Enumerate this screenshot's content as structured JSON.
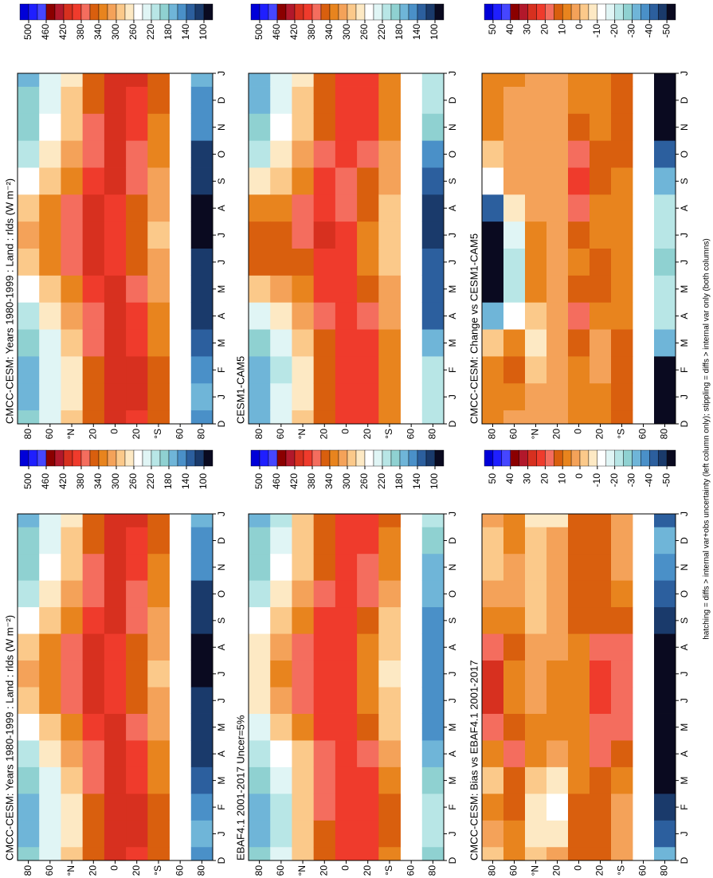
{
  "chart_data": [
    {
      "type": "heatmap",
      "title": "CMCC-CESM: Years 1980-1999 : Land : rlds (W m⁻²)",
      "categories": [
        "D",
        "J",
        "F",
        "M",
        "A",
        "M",
        "J",
        "J",
        "A",
        "S",
        "O",
        "N",
        "D",
        "J"
      ],
      "rows": [
        80,
        60,
        40,
        20,
        0,
        -20,
        -40,
        -60,
        -80
      ],
      "z": [
        [
          190,
          180,
          180,
          190,
          220,
          260,
          300,
          310,
          300,
          260,
          220,
          200,
          190,
          180
        ],
        [
          240,
          230,
          230,
          240,
          270,
          300,
          330,
          340,
          330,
          300,
          270,
          250,
          240,
          230
        ],
        [
          290,
          280,
          280,
          290,
          310,
          340,
          370,
          380,
          370,
          340,
          310,
          295,
          290,
          280
        ],
        [
          360,
          350,
          355,
          365,
          380,
          395,
          405,
          410,
          405,
          395,
          380,
          365,
          360,
          350
        ],
        [
          405,
          405,
          410,
          410,
          410,
          405,
          400,
          400,
          400,
          405,
          405,
          405,
          405,
          405
        ],
        [
          400,
          405,
          405,
          400,
          385,
          370,
          355,
          350,
          355,
          365,
          380,
          395,
          400,
          405
        ],
        [
          345,
          350,
          350,
          340,
          325,
          315,
          305,
          300,
          305,
          315,
          325,
          340,
          345,
          350
        ],
        [
          null,
          null,
          null,
          null,
          null,
          null,
          null,
          null,
          null,
          null,
          null,
          null,
          null,
          null
        ],
        [
          160,
          170,
          160,
          140,
          120,
          110,
          105,
          100,
          100,
          105,
          120,
          145,
          160,
          170
        ]
      ],
      "ylim": [
        -90,
        90
      ],
      "yticks": [
        80,
        60,
        {
          "value": 40,
          "label": "°N"
        },
        20,
        0,
        {
          "value": -20,
          "label": "20"
        },
        {
          "value": -40,
          "label": "°S"
        },
        {
          "value": -60,
          "label": "60"
        },
        {
          "value": -80,
          "label": "80"
        }
      ],
      "clim": [
        80,
        520
      ],
      "cticks": [
        500,
        460,
        420,
        380,
        340,
        300,
        260,
        220,
        180,
        140,
        100
      ]
    },
    {
      "type": "heatmap",
      "title": "CMCC-CESM: Years 1980-1999 : Land : rlds (W m⁻²)",
      "categories": [
        "D",
        "J",
        "F",
        "M",
        "A",
        "M",
        "J",
        "J",
        "A",
        "S",
        "O",
        "N",
        "D",
        "J"
      ],
      "rows": [
        80,
        60,
        40,
        20,
        0,
        -20,
        -40,
        -60,
        -80
      ],
      "z": [
        [
          190,
          180,
          180,
          190,
          220,
          260,
          300,
          310,
          300,
          260,
          220,
          200,
          190,
          180
        ],
        [
          240,
          230,
          230,
          240,
          270,
          300,
          330,
          340,
          330,
          300,
          270,
          250,
          240,
          230
        ],
        [
          290,
          280,
          280,
          290,
          310,
          340,
          370,
          380,
          370,
          340,
          310,
          295,
          290,
          280
        ],
        [
          360,
          350,
          355,
          365,
          380,
          395,
          405,
          410,
          405,
          395,
          380,
          365,
          360,
          350
        ],
        [
          405,
          405,
          410,
          410,
          410,
          405,
          400,
          400,
          400,
          405,
          405,
          405,
          405,
          405
        ],
        [
          400,
          405,
          405,
          400,
          385,
          370,
          355,
          350,
          355,
          365,
          380,
          395,
          400,
          405
        ],
        [
          345,
          350,
          350,
          340,
          325,
          315,
          305,
          300,
          305,
          315,
          325,
          340,
          345,
          350
        ],
        [
          null,
          null,
          null,
          null,
          null,
          null,
          null,
          null,
          null,
          null,
          null,
          null,
          null,
          null
        ],
        [
          160,
          170,
          160,
          140,
          120,
          110,
          105,
          100,
          100,
          105,
          120,
          145,
          160,
          170
        ]
      ],
      "ylim": [
        -90,
        90
      ],
      "yticks": [
        80,
        60,
        {
          "value": 40,
          "label": "°N"
        },
        20,
        0,
        {
          "value": -20,
          "label": "20"
        },
        {
          "value": -40,
          "label": "°S"
        },
        {
          "value": -60,
          "label": "60"
        },
        {
          "value": -80,
          "label": "80"
        }
      ],
      "clim": [
        80,
        520
      ],
      "cticks": [
        500,
        460,
        420,
        380,
        340,
        300,
        260,
        220,
        180,
        140,
        100
      ]
    },
    {
      "type": "heatmap",
      "title": "EBAF4.1 2001-2017 Uncer=5%",
      "categories": [
        "D",
        "J",
        "F",
        "M",
        "A",
        "M",
        "J",
        "J",
        "A",
        "S",
        "O",
        "N",
        "D",
        "J"
      ],
      "rows": [
        80,
        60,
        40,
        20,
        0,
        -20,
        -40,
        -60,
        -80
      ],
      "z": [
        [
          190,
          175,
          170,
          190,
          210,
          240,
          270,
          280,
          280,
          250,
          215,
          200,
          190,
          175
        ],
        [
          230,
          220,
          215,
          225,
          250,
          285,
          320,
          330,
          315,
          290,
          265,
          245,
          230,
          220
        ],
        [
          290,
          285,
          285,
          290,
          300,
          330,
          365,
          375,
          365,
          340,
          310,
          295,
          290,
          285
        ],
        [
          355,
          355,
          365,
          370,
          375,
          385,
          395,
          400,
          400,
          390,
          375,
          360,
          355,
          355
        ],
        [
          390,
          390,
          395,
          400,
          400,
          395,
          390,
          390,
          390,
          390,
          390,
          390,
          390,
          390
        ],
        [
          385,
          390,
          390,
          385,
          365,
          350,
          330,
          325,
          335,
          350,
          365,
          380,
          385,
          390
        ],
        [
          340,
          345,
          345,
          330,
          310,
          295,
          285,
          280,
          285,
          300,
          315,
          335,
          340,
          345
        ],
        [
          null,
          null,
          null,
          null,
          null,
          null,
          null,
          null,
          null,
          null,
          null,
          null,
          null,
          null
        ],
        [
          190,
          210,
          205,
          190,
          170,
          160,
          155,
          150,
          150,
          155,
          165,
          180,
          190,
          210
        ]
      ],
      "ylim": [
        -90,
        90
      ],
      "yticks": [
        80,
        60,
        {
          "value": 40,
          "label": "°N"
        },
        20,
        0,
        {
          "value": -20,
          "label": "20"
        },
        {
          "value": -40,
          "label": "°S"
        },
        {
          "value": -60,
          "label": "60"
        },
        {
          "value": -80,
          "label": "80"
        }
      ],
      "clim": [
        80,
        520
      ],
      "cticks": [
        500,
        460,
        420,
        380,
        340,
        300,
        260,
        220,
        180,
        140,
        100
      ]
    },
    {
      "type": "heatmap",
      "title": "CESM1-CAM5",
      "categories": [
        "D",
        "J",
        "F",
        "M",
        "A",
        "M",
        "J",
        "J",
        "A",
        "S",
        "O",
        "N",
        "D",
        "J"
      ],
      "rows": [
        80,
        60,
        40,
        20,
        0,
        -20,
        -40,
        -60,
        -80
      ],
      "z": [
        [
          180,
          170,
          170,
          190,
          240,
          300,
          350,
          360,
          330,
          270,
          220,
          190,
          180,
          170
        ],
        [
          235,
          225,
          220,
          230,
          275,
          315,
          345,
          350,
          340,
          300,
          265,
          245,
          235,
          225
        ],
        [
          285,
          280,
          280,
          290,
          310,
          330,
          360,
          370,
          365,
          335,
          305,
          290,
          285,
          280
        ],
        [
          355,
          345,
          350,
          360,
          375,
          390,
          400,
          405,
          400,
          390,
          375,
          360,
          355,
          345
        ],
        [
          395,
          395,
          400,
          395,
          390,
          390,
          390,
          385,
          380,
          380,
          385,
          390,
          395,
          395
        ],
        [
          390,
          395,
          400,
          395,
          375,
          355,
          340,
          340,
          345,
          350,
          365,
          385,
          390,
          395
        ],
        [
          330,
          335,
          335,
          325,
          315,
          305,
          295,
          290,
          295,
          305,
          310,
          325,
          330,
          335
        ],
        [
          null,
          null,
          null,
          null,
          null,
          null,
          null,
          null,
          null,
          null,
          null,
          null,
          null,
          null
        ],
        [
          210,
          220,
          210,
          170,
          140,
          130,
          130,
          120,
          120,
          135,
          160,
          195,
          210,
          220
        ]
      ],
      "ylim": [
        -90,
        90
      ],
      "yticks": [
        80,
        60,
        {
          "value": 40,
          "label": "°N"
        },
        20,
        0,
        {
          "value": -20,
          "label": "20"
        },
        {
          "value": -40,
          "label": "°S"
        },
        {
          "value": -60,
          "label": "60"
        },
        {
          "value": -80,
          "label": "80"
        }
      ],
      "clim": [
        80,
        520
      ],
      "cticks": [
        500,
        460,
        420,
        380,
        340,
        300,
        260,
        220,
        180,
        140,
        100
      ]
    },
    {
      "type": "heatmap",
      "title": "CMCC-CESM: Bias vs EBAF4.1 2001-2017",
      "categories": [
        "D",
        "J",
        "F",
        "M",
        "A",
        "M",
        "J",
        "J",
        "A",
        "S",
        "O",
        "N",
        "D",
        "J"
      ],
      "rows": [
        80,
        60,
        40,
        20,
        0,
        -20,
        -40,
        -60,
        -80
      ],
      "z": [
        [
          0,
          5,
          10,
          0,
          10,
          20,
          30,
          30,
          20,
          10,
          5,
          0,
          0,
          5
        ],
        [
          10,
          10,
          15,
          15,
          20,
          15,
          10,
          10,
          15,
          10,
          5,
          5,
          10,
          10
        ],
        [
          0,
          -5,
          -5,
          0,
          10,
          10,
          5,
          5,
          5,
          0,
          0,
          0,
          0,
          -5
        ],
        [
          5,
          -5,
          -10,
          -5,
          5,
          10,
          10,
          10,
          5,
          5,
          5,
          5,
          5,
          -5
        ],
        [
          15,
          15,
          15,
          10,
          10,
          10,
          10,
          10,
          10,
          15,
          15,
          15,
          15,
          15
        ],
        [
          15,
          15,
          15,
          15,
          20,
          20,
          25,
          25,
          20,
          15,
          15,
          15,
          15,
          15
        ],
        [
          5,
          5,
          5,
          10,
          15,
          20,
          20,
          20,
          20,
          15,
          10,
          5,
          5,
          5
        ],
        [
          null,
          null,
          null,
          null,
          null,
          null,
          null,
          null,
          null,
          null,
          null,
          null,
          null,
          null
        ],
        [
          -30,
          -40,
          -45,
          -50,
          -50,
          -50,
          -50,
          -50,
          -50,
          -45,
          -40,
          -35,
          -30,
          -40
        ]
      ],
      "ylim": [
        -90,
        90
      ],
      "yticks": [
        80,
        60,
        {
          "value": 40,
          "label": "°N"
        },
        20,
        0,
        {
          "value": -20,
          "label": "20"
        },
        {
          "value": -40,
          "label": "°S"
        },
        {
          "value": -60,
          "label": "60"
        },
        {
          "value": -80,
          "label": "80"
        }
      ],
      "clim": [
        -55,
        55
      ],
      "cticks": [
        50,
        40,
        30,
        20,
        10,
        0,
        -10,
        -20,
        -30,
        -40,
        -50
      ]
    },
    {
      "type": "heatmap",
      "title": "CMCC-CESM: Change vs CESM1-CAM5",
      "categories": [
        "D",
        "J",
        "F",
        "M",
        "A",
        "M",
        "J",
        "J",
        "A",
        "S",
        "O",
        "N",
        "D",
        "J"
      ],
      "rows": [
        80,
        60,
        40,
        20,
        0,
        -20,
        -40,
        -60,
        -80
      ],
      "z": [
        [
          10,
          10,
          10,
          0,
          -30,
          -50,
          -55,
          -55,
          -40,
          -10,
          0,
          10,
          10,
          10
        ],
        [
          5,
          10,
          15,
          10,
          -10,
          -20,
          -20,
          -15,
          -5,
          5,
          5,
          5,
          5,
          10
        ],
        [
          5,
          5,
          0,
          -5,
          0,
          10,
          10,
          10,
          5,
          5,
          5,
          5,
          5,
          5
        ],
        [
          5,
          5,
          5,
          5,
          5,
          5,
          5,
          5,
          5,
          5,
          5,
          5,
          5,
          5
        ],
        [
          10,
          10,
          10,
          15,
          20,
          15,
          10,
          15,
          20,
          25,
          20,
          15,
          10,
          10
        ],
        [
          10,
          10,
          5,
          5,
          10,
          15,
          15,
          10,
          10,
          15,
          15,
          10,
          10,
          10
        ],
        [
          15,
          15,
          15,
          15,
          10,
          10,
          10,
          10,
          10,
          10,
          15,
          15,
          15,
          15
        ],
        [
          null,
          null,
          null,
          null,
          null,
          null,
          null,
          null,
          null,
          null,
          null,
          null,
          null,
          null
        ],
        [
          -50,
          -50,
          -50,
          -30,
          -20,
          -20,
          -25,
          -20,
          -20,
          -30,
          -40,
          -50,
          -50,
          -50
        ]
      ],
      "ylim": [
        -90,
        90
      ],
      "yticks": [
        80,
        60,
        {
          "value": 40,
          "label": "°N"
        },
        20,
        0,
        {
          "value": -20,
          "label": "20"
        },
        {
          "value": -40,
          "label": "°S"
        },
        {
          "value": -60,
          "label": "60"
        },
        {
          "value": -80,
          "label": "80"
        }
      ],
      "clim": [
        -55,
        55
      ],
      "cticks": [
        50,
        40,
        30,
        20,
        10,
        0,
        -10,
        -20,
        -30,
        -40,
        -50
      ]
    }
  ],
  "colors": [
    "#0000d8",
    "#1f1fff",
    "#4646ff",
    "#8b0000",
    "#b2182b",
    "#d7301f",
    "#ef3b2c",
    "#f46d5e",
    "#d95f0e",
    "#e8841e",
    "#f4a259",
    "#fbc98a",
    "#fde9c4",
    "#ffffff",
    "#e0f5f5",
    "#b8e6e6",
    "#8fd1d1",
    "#6fb5d8",
    "#4a90c8",
    "#2c5f9e",
    "#1a3a6b",
    "#0a0a20"
  ],
  "footnote": "hatching = diffs > internal var+obs uncertainty (left column only); stippling = diffs > internal var only (both columns)"
}
